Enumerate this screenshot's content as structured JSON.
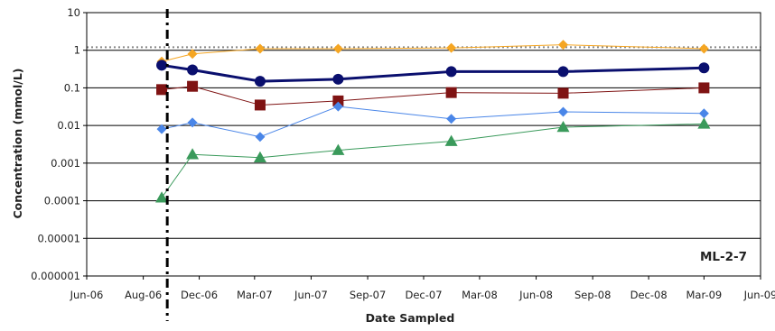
{
  "chart_data": {
    "type": "line",
    "xlabel": "Date Sampled",
    "ylabel": "Concentration (mmol/L)",
    "annotation": "ML-2-7",
    "y_scale": "log",
    "ylim": [
      1e-06,
      10
    ],
    "y_ticks": [
      "0.000001",
      "0.00001",
      "0.0001",
      "0.001",
      "0.01",
      "0.1",
      "1",
      "10"
    ],
    "xlim": [
      "2006-06-01",
      "2009-06-01"
    ],
    "x_ticks": [
      {
        "date": "2006-06-01",
        "label": "Jun-06"
      },
      {
        "date": "2006-09-01",
        "label": "Aug-06"
      },
      {
        "date": "2006-12-01",
        "label": "Dec-06"
      },
      {
        "date": "2007-03-01",
        "label": "Mar-07"
      },
      {
        "date": "2007-06-01",
        "label": "Jun-07"
      },
      {
        "date": "2007-09-01",
        "label": "Sep-07"
      },
      {
        "date": "2007-12-01",
        "label": "Dec-07"
      },
      {
        "date": "2008-03-01",
        "label": "Mar-08"
      },
      {
        "date": "2008-06-01",
        "label": "Jun-08"
      },
      {
        "date": "2008-09-01",
        "label": "Sep-08"
      },
      {
        "date": "2008-12-01",
        "label": "Dec-08"
      },
      {
        "date": "2009-03-01",
        "label": "Mar-09"
      },
      {
        "date": "2009-06-01",
        "label": "Jun-09"
      }
    ],
    "reference_line": {
      "value": 1.2,
      "color": "#888888",
      "style": "dotted"
    },
    "vertical_marker": {
      "date": "2006-10-10",
      "color": "#000000",
      "style": "dash-dot"
    },
    "grid": {
      "horizontal": true,
      "vertical": false
    },
    "series": [
      {
        "color": "#F5A623",
        "marker": "diamond",
        "line_width": 1,
        "points": [
          {
            "x": "2006-10-01",
            "y": 0.5
          },
          {
            "x": "2006-11-20",
            "y": 0.8
          },
          {
            "x": "2007-03-10",
            "y": 1.1
          },
          {
            "x": "2007-07-15",
            "y": 1.1
          },
          {
            "x": "2008-01-15",
            "y": 1.15
          },
          {
            "x": "2008-07-15",
            "y": 1.4
          },
          {
            "x": "2009-03-01",
            "y": 1.1
          }
        ]
      },
      {
        "color": "#0A0F6E",
        "marker": "circle",
        "line_width": 3,
        "points": [
          {
            "x": "2006-10-01",
            "y": 0.4
          },
          {
            "x": "2006-11-20",
            "y": 0.3
          },
          {
            "x": "2007-03-10",
            "y": 0.15
          },
          {
            "x": "2007-07-15",
            "y": 0.17
          },
          {
            "x": "2008-01-15",
            "y": 0.27
          },
          {
            "x": "2008-07-15",
            "y": 0.27
          },
          {
            "x": "2009-03-01",
            "y": 0.34
          }
        ]
      },
      {
        "color": "#7F1313",
        "marker": "square",
        "line_width": 1,
        "points": [
          {
            "x": "2006-10-01",
            "y": 0.09
          },
          {
            "x": "2006-11-20",
            "y": 0.11
          },
          {
            "x": "2007-03-10",
            "y": 0.035
          },
          {
            "x": "2007-07-15",
            "y": 0.045
          },
          {
            "x": "2008-01-15",
            "y": 0.075
          },
          {
            "x": "2008-07-15",
            "y": 0.072
          },
          {
            "x": "2009-03-01",
            "y": 0.1
          }
        ]
      },
      {
        "color": "#4A86E8",
        "marker": "diamond",
        "line_width": 1,
        "points": [
          {
            "x": "2006-10-01",
            "y": 0.008
          },
          {
            "x": "2006-11-20",
            "y": 0.012
          },
          {
            "x": "2007-03-10",
            "y": 0.005
          },
          {
            "x": "2007-07-15",
            "y": 0.032
          },
          {
            "x": "2008-01-15",
            "y": 0.015
          },
          {
            "x": "2008-07-15",
            "y": 0.023
          },
          {
            "x": "2009-03-01",
            "y": 0.021
          }
        ]
      },
      {
        "color": "#3A9A5B",
        "marker": "triangle",
        "line_width": 1,
        "points": [
          {
            "x": "2006-10-01",
            "y": 0.00012
          },
          {
            "x": "2006-11-20",
            "y": 0.0017
          },
          {
            "x": "2007-03-10",
            "y": 0.0014
          },
          {
            "x": "2007-07-15",
            "y": 0.0022
          },
          {
            "x": "2008-01-15",
            "y": 0.0038
          },
          {
            "x": "2008-07-15",
            "y": 0.009
          },
          {
            "x": "2009-03-01",
            "y": 0.011
          }
        ]
      }
    ]
  }
}
